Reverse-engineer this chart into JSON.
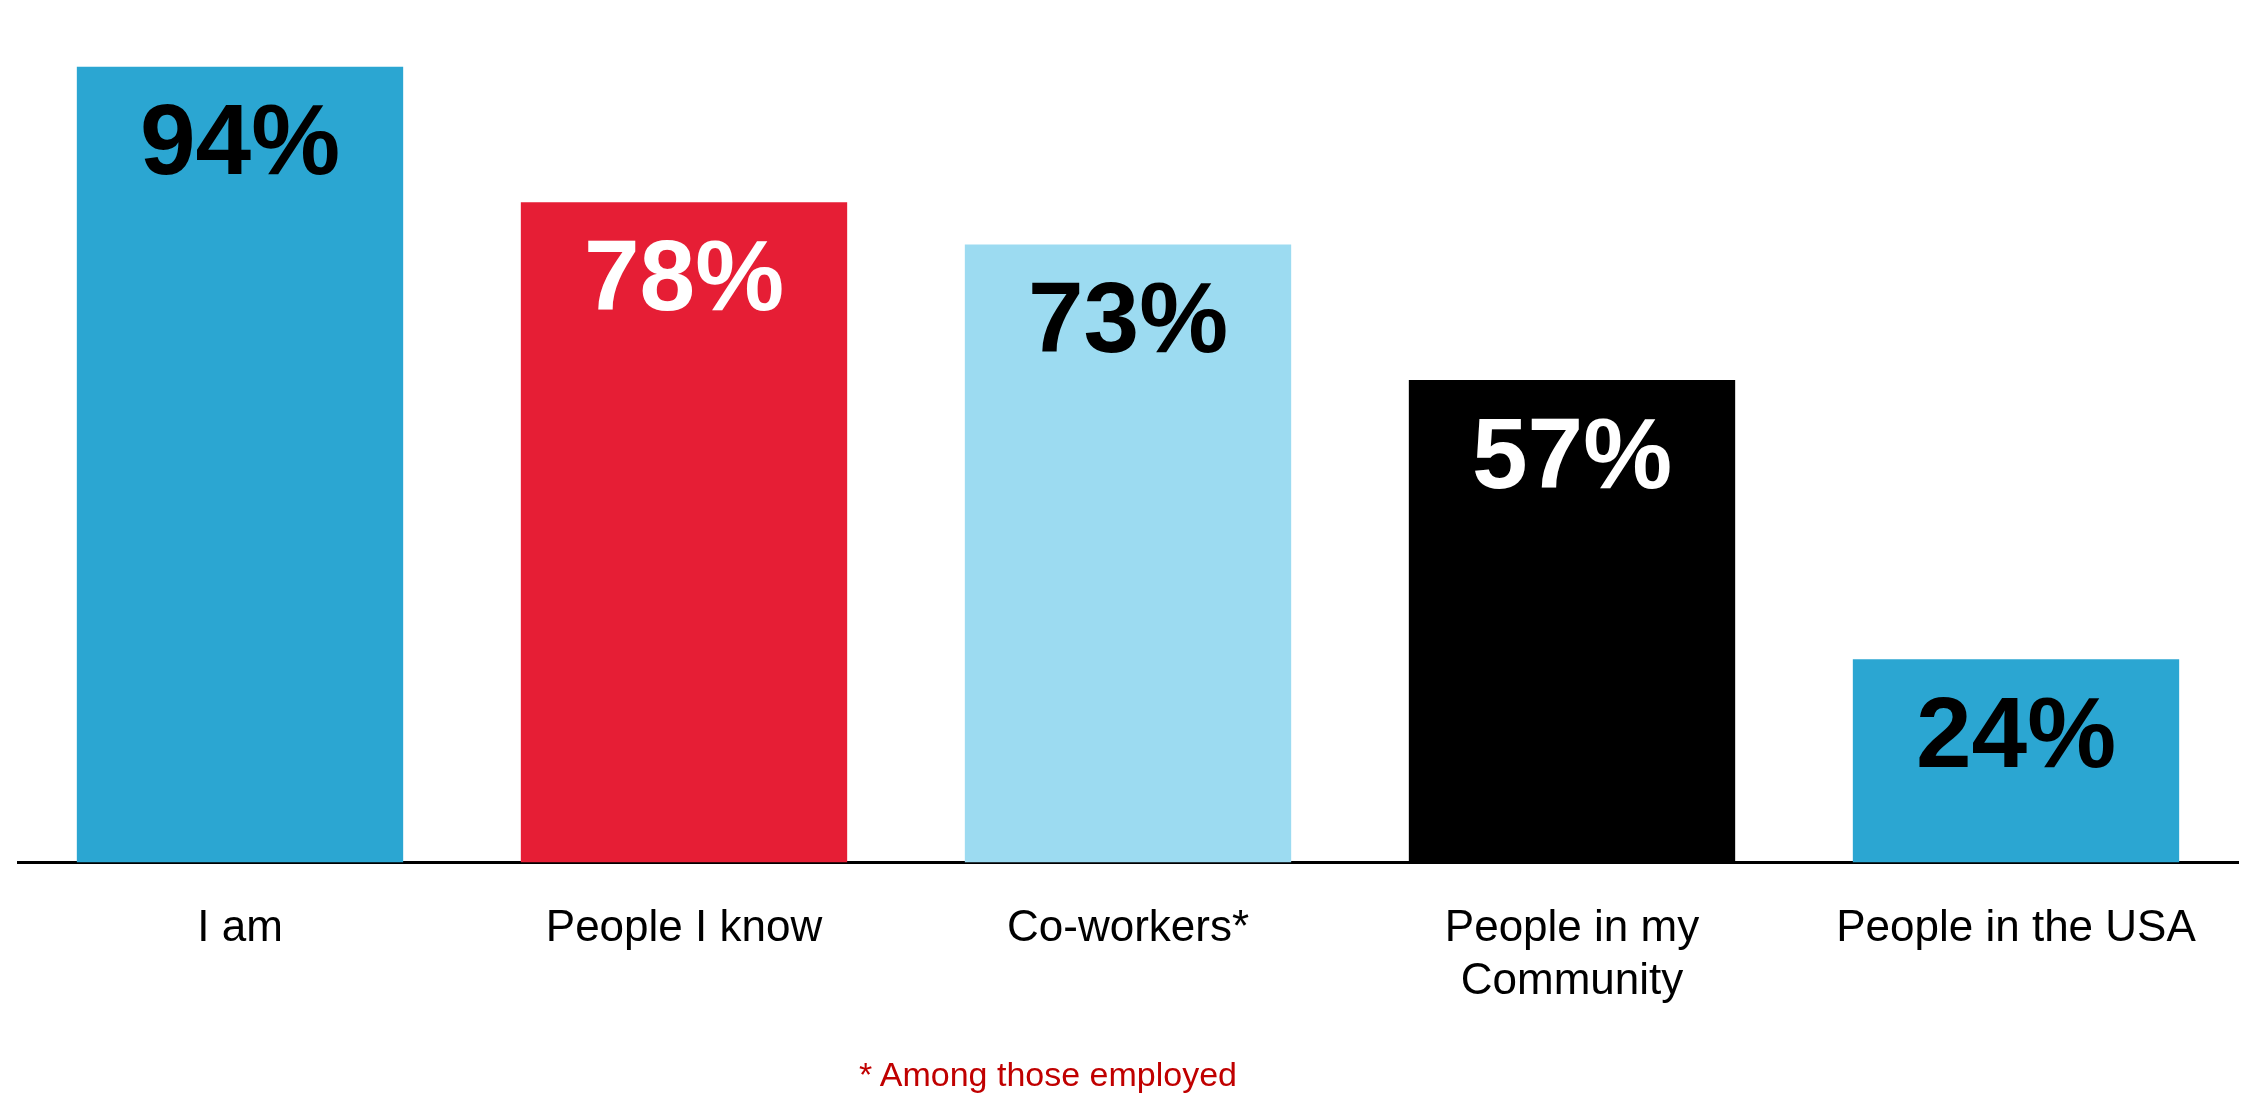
{
  "chart_data": {
    "type": "bar",
    "categories": [
      "I am",
      "People I know",
      "Co-workers*",
      "People in my Community",
      "People in the USA"
    ],
    "values": [
      94,
      78,
      73,
      57,
      24
    ],
    "value_labels": [
      "94%",
      "78%",
      "73%",
      "57%",
      "24%"
    ],
    "colors": [
      "#2ba6d2",
      "#e61e35",
      "#9cdbf1",
      "#000000",
      "#2ba6d2"
    ],
    "annotations": [
      "* Among those employed"
    ],
    "grid": false,
    "legend": false
  }
}
